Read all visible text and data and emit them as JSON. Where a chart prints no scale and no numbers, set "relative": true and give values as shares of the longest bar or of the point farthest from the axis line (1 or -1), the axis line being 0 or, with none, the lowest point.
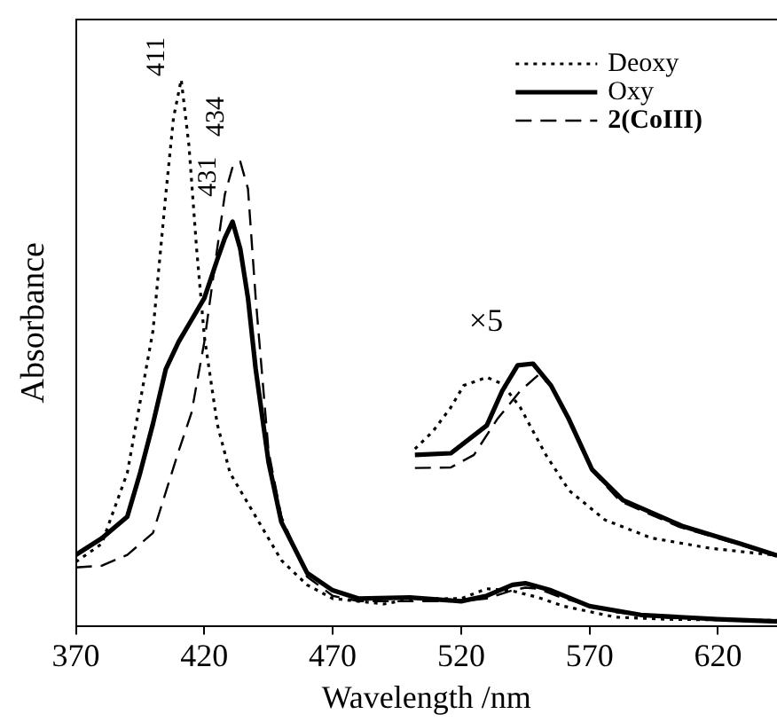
{
  "chart_data": {
    "type": "line",
    "xlabel": "Wavelength /nm",
    "ylabel": "Absorbance",
    "relative": true,
    "xlim": [
      370,
      643
    ],
    "xticks": [
      370,
      420,
      470,
      520,
      570,
      620
    ],
    "grid": false,
    "legend": "top right",
    "marker": "none",
    "series": [
      {
        "name": "Deoxy",
        "color": "#000000",
        "line_style": "dotted",
        "x": [
          370,
          380,
          390,
          400,
          405,
          408,
          411,
          414,
          417,
          420,
          425,
          430,
          440,
          450,
          460,
          470,
          490,
          500,
          520,
          530,
          540,
          550,
          560,
          580,
          600,
          643
        ],
        "values": [
          0.117,
          0.15,
          0.28,
          0.54,
          0.79,
          0.93,
          1.0,
          0.88,
          0.69,
          0.53,
          0.37,
          0.28,
          0.2,
          0.12,
          0.075,
          0.05,
          0.04,
          0.049,
          0.05,
          0.068,
          0.064,
          0.052,
          0.036,
          0.016,
          0.012,
          0.01
        ]
      },
      {
        "name": "Oxy",
        "color": "#000000",
        "line_style": "solid",
        "x": [
          370,
          380,
          390,
          395,
          400,
          405,
          410,
          415,
          420,
          425,
          428,
          431,
          434,
          437,
          440,
          445,
          450,
          460,
          470,
          480,
          500,
          520,
          530,
          540,
          545,
          555,
          570,
          590,
          620,
          643
        ],
        "values": [
          0.13,
          0.16,
          0.2,
          0.28,
          0.37,
          0.47,
          0.52,
          0.56,
          0.6,
          0.67,
          0.71,
          0.74,
          0.69,
          0.6,
          0.47,
          0.3,
          0.19,
          0.097,
          0.065,
          0.05,
          0.052,
          0.045,
          0.055,
          0.075,
          0.078,
          0.065,
          0.036,
          0.02,
          0.012,
          0.008
        ]
      },
      {
        "name": "2(CoIII)",
        "color": "#000000",
        "line_style": "dashed",
        "x": [
          370,
          380,
          390,
          400,
          410,
          415,
          420,
          425,
          428,
          431,
          434,
          437,
          440,
          445,
          450,
          460,
          470,
          480,
          500,
          520,
          530,
          540,
          545,
          550,
          560,
          580,
          600,
          643
        ],
        "values": [
          0.107,
          0.11,
          0.13,
          0.17,
          0.32,
          0.39,
          0.52,
          0.69,
          0.79,
          0.84,
          0.85,
          0.8,
          0.6,
          0.32,
          0.2,
          0.09,
          0.055,
          0.045,
          0.045,
          0.045,
          0.05,
          0.065,
          0.07,
          0.068,
          0.05,
          0.025,
          0.015,
          0.01
        ]
      },
      {
        "color": "#000000",
        "line_style": "dotted",
        "x": [
          502,
          509,
          516,
          521,
          530,
          536,
          543,
          553,
          562,
          576,
          594,
          617,
          643
        ],
        "values": [
          0.324,
          0.356,
          0.4,
          0.44,
          0.455,
          0.443,
          0.4,
          0.313,
          0.248,
          0.194,
          0.161,
          0.142,
          0.129
        ]
      },
      {
        "color": "#000000",
        "line_style": "solid",
        "x": [
          502,
          516,
          530,
          536,
          542,
          548,
          555,
          562,
          571,
          583,
          606,
          629,
          643
        ],
        "values": [
          0.313,
          0.316,
          0.367,
          0.43,
          0.477,
          0.48,
          0.44,
          0.378,
          0.286,
          0.23,
          0.183,
          0.15,
          0.129
        ]
      },
      {
        "color": "#000000",
        "line_style": "dashed",
        "x": [
          502,
          516,
          525,
          534,
          543,
          550,
          555,
          562,
          571,
          582,
          605,
          629,
          643
        ],
        "values": [
          0.289,
          0.29,
          0.313,
          0.378,
          0.43,
          0.459,
          0.44,
          0.375,
          0.284,
          0.228,
          0.181,
          0.148,
          0.127
        ]
      }
    ],
    "annotations": [
      {
        "text": "411",
        "x": 411,
        "y": 1.0
      },
      {
        "text": "431",
        "x": 431,
        "y": 0.74
      },
      {
        "text": "434",
        "x": 434,
        "y": 0.85
      },
      "×5"
    ]
  }
}
